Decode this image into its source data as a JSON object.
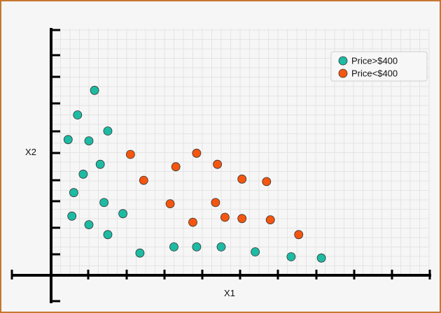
{
  "chart_data": {
    "type": "scatter",
    "title": "",
    "xlabel": "X1",
    "ylabel": "X2",
    "xlim": [
      0,
      10
    ],
    "ylim": [
      0,
      10
    ],
    "grid": true,
    "legend_position": "top-right",
    "series": [
      {
        "name": "Price>$400",
        "color": "#1dbba3",
        "points": [
          [
            0.7,
            6.5
          ],
          [
            1.15,
            7.5
          ],
          [
            0.45,
            5.5
          ],
          [
            1.0,
            5.45
          ],
          [
            1.5,
            5.85
          ],
          [
            1.3,
            4.5
          ],
          [
            0.85,
            4.1
          ],
          [
            0.6,
            3.35
          ],
          [
            1.4,
            2.95
          ],
          [
            1.9,
            2.5
          ],
          [
            0.55,
            2.4
          ],
          [
            1.0,
            2.05
          ],
          [
            1.5,
            1.65
          ],
          [
            2.35,
            0.9
          ],
          [
            3.25,
            1.15
          ],
          [
            3.85,
            1.15
          ],
          [
            4.5,
            1.15
          ],
          [
            5.4,
            0.95
          ],
          [
            6.35,
            0.75
          ],
          [
            7.15,
            0.7
          ]
        ]
      },
      {
        "name": "Price<$400",
        "color": "#f4560f",
        "points": [
          [
            2.1,
            4.9
          ],
          [
            2.45,
            3.85
          ],
          [
            3.3,
            4.4
          ],
          [
            3.85,
            4.95
          ],
          [
            4.4,
            4.5
          ],
          [
            5.05,
            3.9
          ],
          [
            5.7,
            3.8
          ],
          [
            3.15,
            2.9
          ],
          [
            3.75,
            2.15
          ],
          [
            4.35,
            2.95
          ],
          [
            4.6,
            2.35
          ],
          [
            5.05,
            2.3
          ],
          [
            5.8,
            2.25
          ],
          [
            6.55,
            1.65
          ]
        ]
      }
    ]
  }
}
